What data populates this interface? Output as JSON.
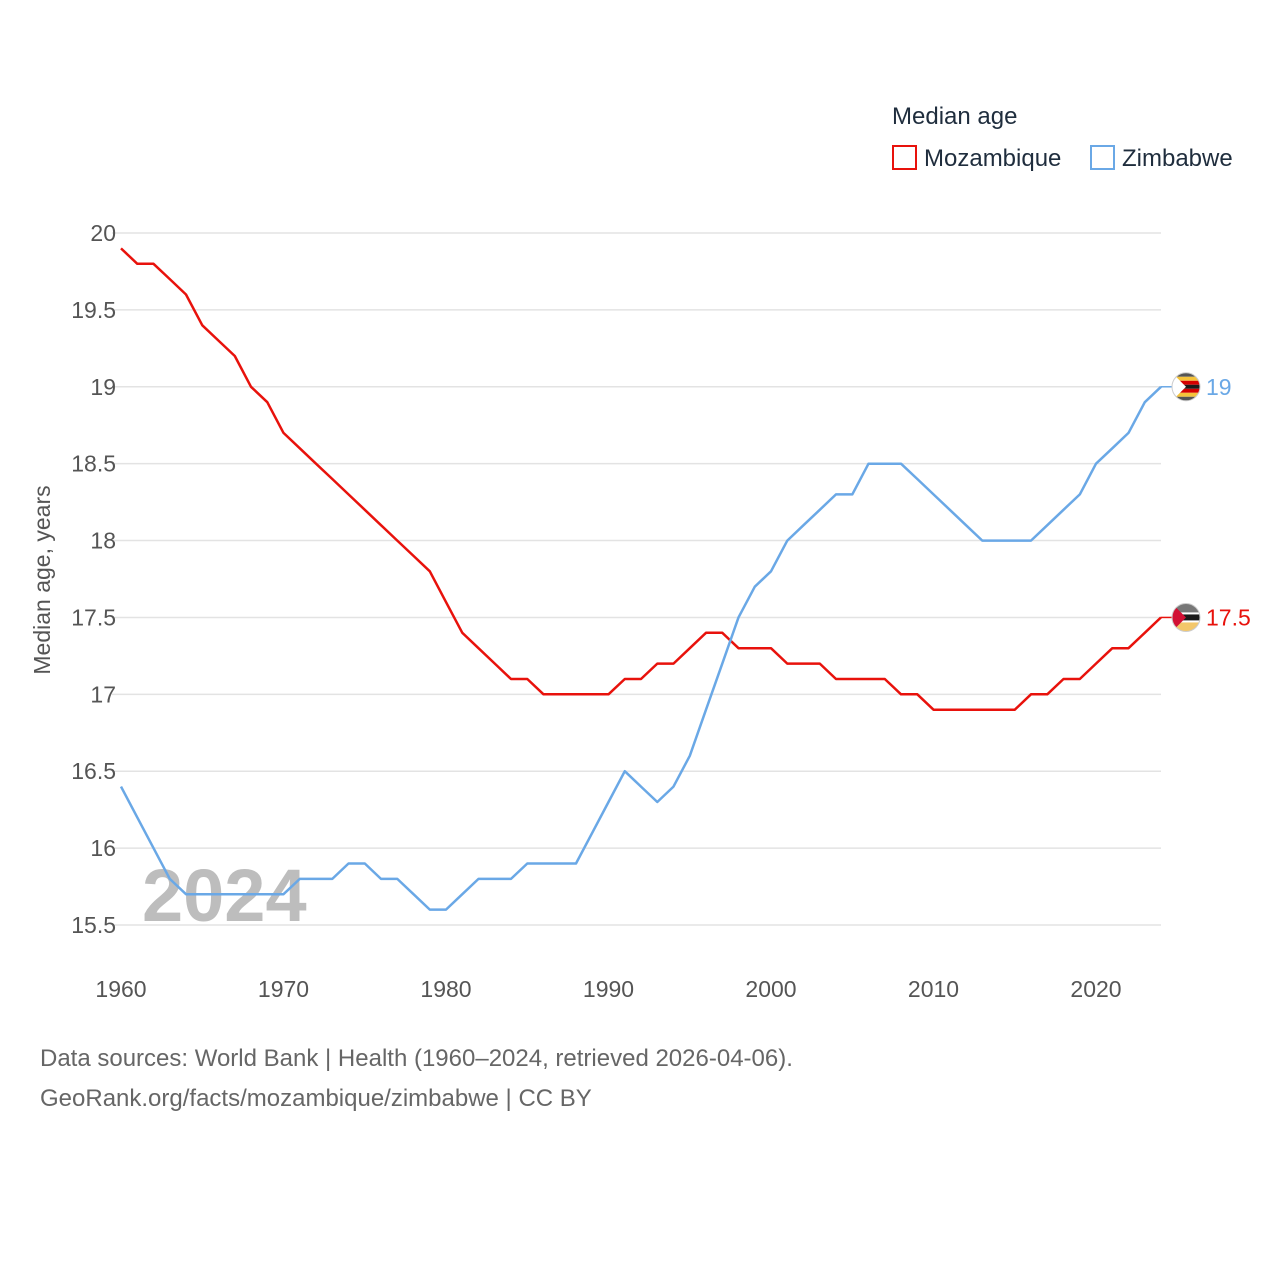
{
  "chart_data": {
    "type": "line",
    "title": "",
    "xlabel": "",
    "ylabel": "Median age, years",
    "legend_title": "Median age",
    "legend_position": "top-right",
    "xlim": [
      1960,
      2024
    ],
    "ylim": [
      15.5,
      20
    ],
    "x_ticks": [
      1960,
      1970,
      1980,
      1990,
      2000,
      2010,
      2020
    ],
    "x_tick_labels": [
      "1960",
      "1970",
      "1980",
      "1990",
      "2000",
      "2010",
      "2020"
    ],
    "y_ticks": [
      15.5,
      16,
      16.5,
      17,
      17.5,
      18,
      18.5,
      19,
      19.5,
      20
    ],
    "y_tick_labels": [
      "15.5",
      "16",
      "16.5",
      "17",
      "17.5",
      "18",
      "18.5",
      "19",
      "19.5",
      "20"
    ],
    "grid": true,
    "watermark_year": "2024",
    "x": [
      1960,
      1961,
      1962,
      1963,
      1964,
      1965,
      1966,
      1967,
      1968,
      1969,
      1970,
      1971,
      1972,
      1973,
      1974,
      1975,
      1976,
      1977,
      1978,
      1979,
      1980,
      1981,
      1982,
      1983,
      1984,
      1985,
      1986,
      1987,
      1988,
      1989,
      1990,
      1991,
      1992,
      1993,
      1994,
      1995,
      1996,
      1997,
      1998,
      1999,
      2000,
      2001,
      2002,
      2003,
      2004,
      2005,
      2006,
      2007,
      2008,
      2009,
      2010,
      2011,
      2012,
      2013,
      2014,
      2015,
      2016,
      2017,
      2018,
      2019,
      2020,
      2021,
      2022,
      2023,
      2024
    ],
    "series": [
      {
        "name": "Mozambique",
        "color": "#e8120c",
        "end_label": "17.5",
        "flag_icon": "mozambique-flag-icon",
        "values": [
          19.9,
          19.8,
          19.8,
          19.7,
          19.6,
          19.4,
          19.3,
          19.2,
          19.0,
          18.9,
          18.7,
          18.6,
          18.5,
          18.4,
          18.3,
          18.2,
          18.1,
          18.0,
          17.9,
          17.8,
          17.6,
          17.4,
          17.3,
          17.2,
          17.1,
          17.1,
          17.0,
          17.0,
          17.0,
          17.0,
          17.0,
          17.1,
          17.1,
          17.2,
          17.2,
          17.3,
          17.4,
          17.4,
          17.3,
          17.3,
          17.3,
          17.2,
          17.2,
          17.2,
          17.1,
          17.1,
          17.1,
          17.1,
          17.0,
          17.0,
          16.9,
          16.9,
          16.9,
          16.9,
          16.9,
          16.9,
          17.0,
          17.0,
          17.1,
          17.1,
          17.2,
          17.3,
          17.3,
          17.4,
          17.5
        ]
      },
      {
        "name": "Zimbabwe",
        "color": "#6aa8e6",
        "end_label": "19",
        "flag_icon": "zimbabwe-flag-icon",
        "values": [
          16.4,
          16.2,
          16.0,
          15.8,
          15.7,
          15.7,
          15.7,
          15.7,
          15.7,
          15.7,
          15.7,
          15.8,
          15.8,
          15.8,
          15.9,
          15.9,
          15.8,
          15.8,
          15.7,
          15.6,
          15.6,
          15.7,
          15.8,
          15.8,
          15.8,
          15.9,
          15.9,
          15.9,
          15.9,
          16.1,
          16.3,
          16.5,
          16.4,
          16.3,
          16.4,
          16.6,
          16.9,
          17.2,
          17.5,
          17.7,
          17.8,
          18.0,
          18.1,
          18.2,
          18.3,
          18.3,
          18.5,
          18.5,
          18.5,
          18.4,
          18.3,
          18.2,
          18.1,
          18.0,
          18.0,
          18.0,
          18.0,
          18.1,
          18.2,
          18.3,
          18.5,
          18.6,
          18.7,
          18.9,
          19.0
        ]
      }
    ]
  },
  "footer": {
    "line1": "Data sources: World Bank | Health (1960–2024, retrieved 2026-04-06).",
    "line2": "GeoRank.org/facts/mozambique/zimbabwe | CC BY"
  }
}
